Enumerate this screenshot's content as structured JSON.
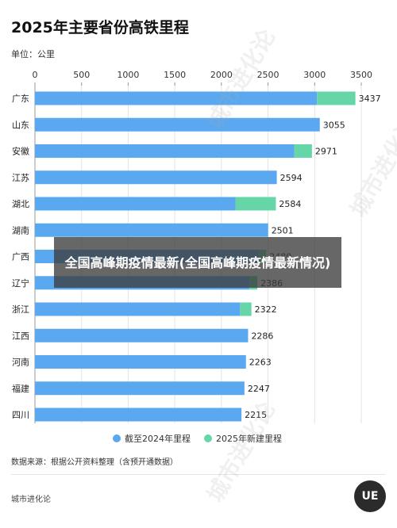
{
  "header": {
    "title": "2025年主要省份高铁里程",
    "unit": "单位：公里"
  },
  "footer": {
    "source": "数据来源：根据公开资料整理（含预开通数据）",
    "brand": "城市进化论",
    "logo_text": "UE"
  },
  "overlay": {
    "text": "全国高峰期疫情最新(全国高峰期疫情最新情况)"
  },
  "watermark": {
    "text": "城市进化论"
  },
  "colors": {
    "existing": "#5aa8f0",
    "new": "#66d6a8"
  },
  "chart_data": {
    "type": "bar",
    "orientation": "horizontal",
    "stacked": true,
    "title": "2025年主要省份高铁里程",
    "unit": "单位：公里",
    "xlim": [
      0,
      3500
    ],
    "xticks": [
      0,
      500,
      1000,
      1500,
      2000,
      2500,
      3000,
      3500
    ],
    "grid": true,
    "legend_position": "bottom",
    "categories": [
      "广东",
      "山东",
      "安徽",
      "江苏",
      "湖北",
      "湖南",
      "广西",
      "辽宁",
      "浙江",
      "江西",
      "河南",
      "福建",
      "四川"
    ],
    "series": [
      {
        "name": "截至2024年里程",
        "values": [
          3025,
          3055,
          2780,
          2594,
          2150,
          2501,
          2400,
          2300,
          2200,
          2286,
          2263,
          2247,
          2215
        ]
      },
      {
        "name": "2025年新建里程",
        "values": [
          412,
          0,
          191,
          0,
          434,
          0,
          80,
          86,
          122,
          0,
          0,
          0,
          0
        ]
      }
    ],
    "totals": [
      3437,
      3055,
      2971,
      2594,
      2584,
      2501,
      2480,
      2386,
      2322,
      2286,
      2263,
      2247,
      2215
    ]
  }
}
